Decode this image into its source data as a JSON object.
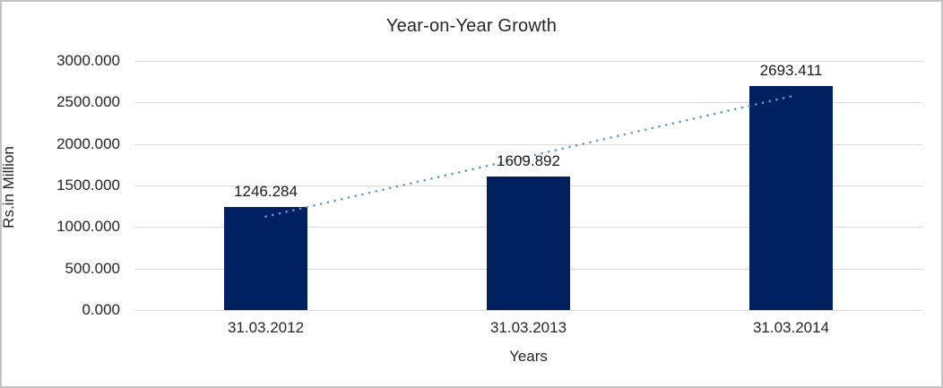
{
  "chart_data": {
    "type": "bar",
    "title": "Year-on-Year Growth",
    "xlabel": "Years",
    "ylabel": "Rs.in Million",
    "categories": [
      "31.03.2012",
      "31.03.2013",
      "31.03.2014"
    ],
    "values": [
      1246.284,
      1609.892,
      2693.411
    ],
    "value_labels": [
      "1246.284",
      "1609.892",
      "2693.411"
    ],
    "ylim": [
      0,
      3000
    ],
    "ytick_step": 500,
    "ytick_labels": [
      "0.000",
      "500.000",
      "1000.000",
      "1500.000",
      "2000.000",
      "2500.000",
      "3000.000"
    ],
    "grid": true,
    "legend": "none",
    "bar_color": "#002060",
    "gridline_color": "#d9d9d9",
    "text_color": "#262626",
    "trendline": {
      "type": "linear",
      "style": "dotted",
      "color": "#5b9bd5",
      "start_value": 1126.3,
      "end_value": 2573.4
    }
  }
}
